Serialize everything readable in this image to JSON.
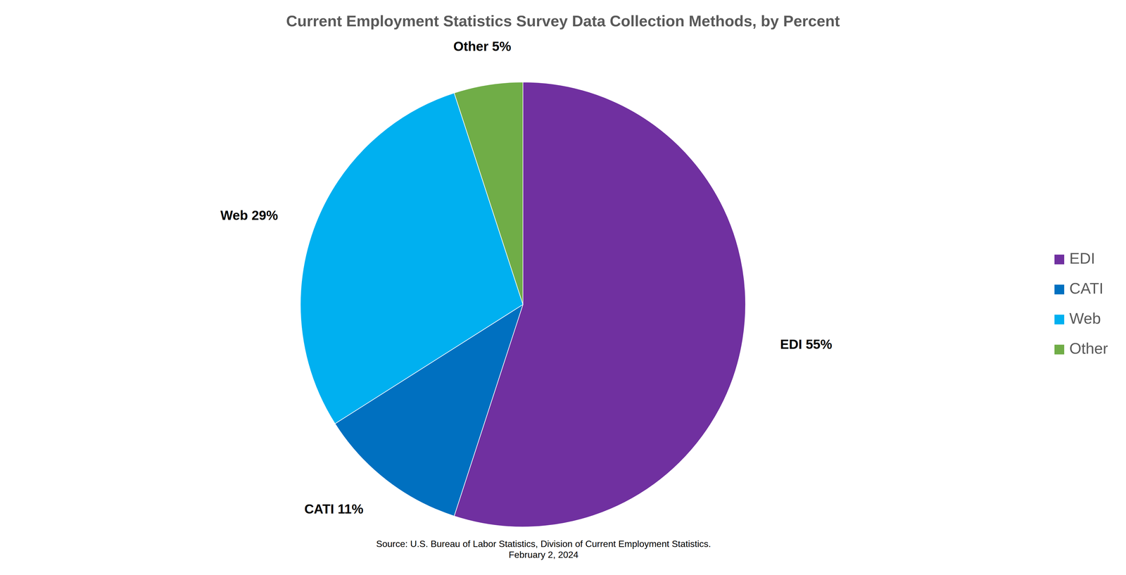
{
  "chart_data": {
    "type": "pie",
    "title": "Current Employment Statistics Survey Data Collection Methods, by Percent",
    "categories": [
      "EDI",
      "CATI",
      "Web",
      "Other"
    ],
    "values": [
      55,
      11,
      29,
      5
    ],
    "value_labels": [
      "EDI 55%",
      "CATI 11%",
      "Web 29%",
      "Other 5%"
    ],
    "colors": [
      "#7030a0",
      "#0070c0",
      "#00b0f0",
      "#70ad47"
    ],
    "data_labels": true,
    "legend": "right",
    "annotations": [
      "Source: U.S. Bureau of Labor Statistics, Division of Current Employment Statistics.",
      "February 2, 2024"
    ]
  }
}
